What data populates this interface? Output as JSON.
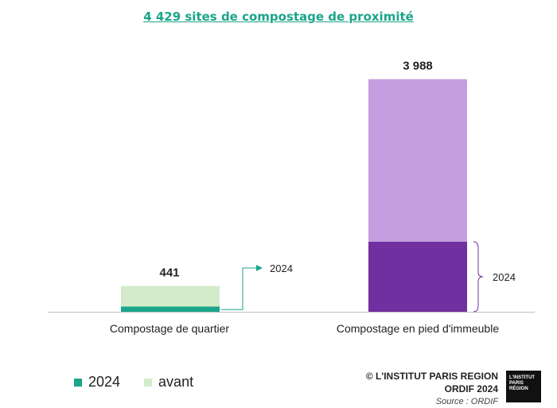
{
  "chart_data": {
    "type": "bar",
    "title": "4 429 sites de compostage de proximité",
    "categories": [
      "Compostage de quartier",
      "Compostage en pied d'immeuble"
    ],
    "series": [
      {
        "name": "2024",
        "values": [
          90,
          1200
        ],
        "colors": [
          "#1aa58a",
          "#7030a0"
        ]
      },
      {
        "name": "avant",
        "values": [
          351,
          2788
        ],
        "colors": [
          "#d4ebc9",
          "#c49ee0"
        ]
      }
    ],
    "totals": [
      "441",
      "3 988"
    ],
    "annotation_label": "2024",
    "ylim": [
      0,
      4200
    ],
    "grid": false,
    "legend_position": "bottom-left"
  },
  "legend": [
    {
      "label": "2024",
      "color": "#1aa58a"
    },
    {
      "label": "avant",
      "color": "#d4ebc9"
    }
  ],
  "credits": {
    "line1": "© L'INSTITUT PARIS REGION",
    "line2": "ORDIF 2024",
    "source": "Source : ORDIF"
  },
  "logo_text": [
    "L'INSTITUT",
    "PARIS",
    "RÉGION"
  ]
}
